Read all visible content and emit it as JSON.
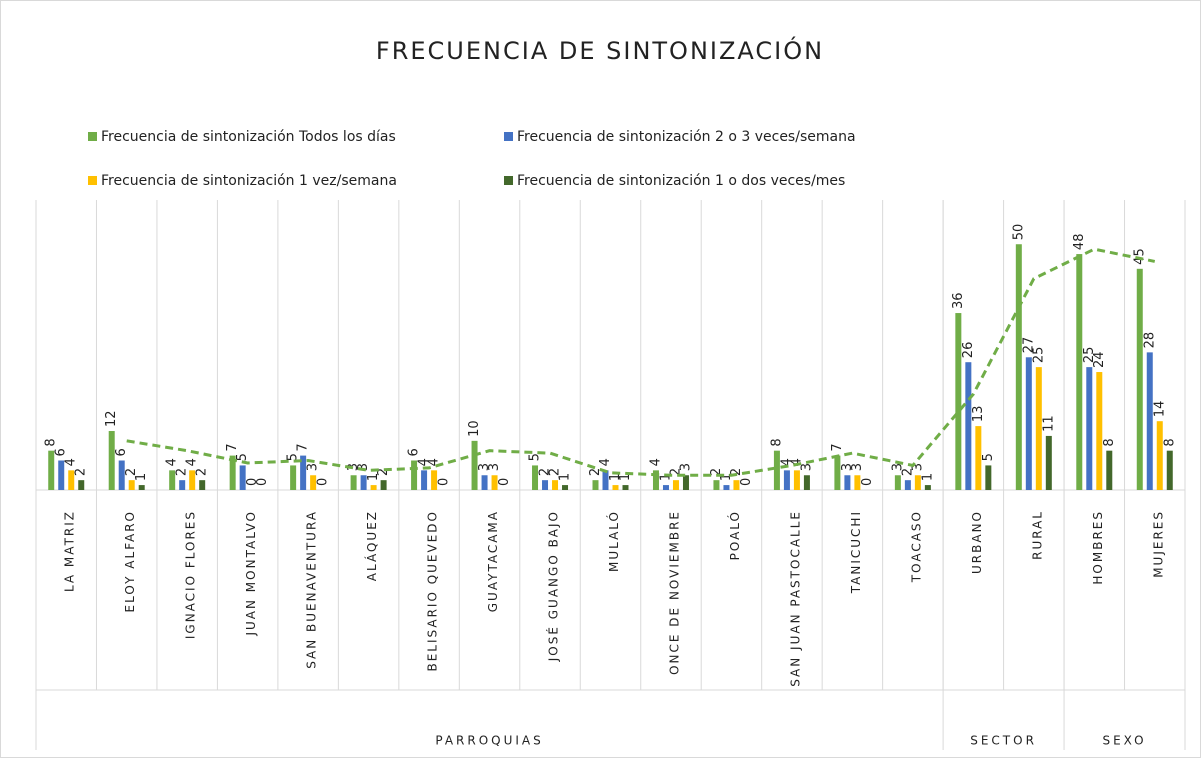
{
  "chart_data": {
    "type": "bar",
    "title": "FRECUENCIA DE SINTONIZACIÓN",
    "categories": [
      "LA MATRIZ",
      "ELOY ALFARO",
      "IGNACIO FLORES",
      "JUAN MONTALVO",
      "SAN BUENAVENTURA",
      "ALÁQUEZ",
      "BELISARIO QUEVEDO",
      "GUAYTACAMA",
      "JOSÉ GUANGO BAJO",
      "MULALÓ",
      "ONCE DE NOVIEMBRE",
      "POALÓ",
      "SAN JUAN PASTOCALLE",
      "TANICUCHI",
      "TOACASO",
      "URBANO",
      "RURAL",
      "HOMBRES",
      "MUJERES"
    ],
    "groups": [
      {
        "label": "PARROQUIAS",
        "count": 15
      },
      {
        "label": "SECTOR",
        "count": 2
      },
      {
        "label": "SEXO",
        "count": 2
      }
    ],
    "series": [
      {
        "name": "Frecuencia de sintonización Todos los días",
        "color": "#70ad47",
        "values": [
          8,
          12,
          4,
          7,
          5,
          3,
          6,
          10,
          5,
          2,
          4,
          2,
          8,
          7,
          3,
          36,
          50,
          48,
          45
        ]
      },
      {
        "name": "Frecuencia de sintonización 2 o 3 veces/semana",
        "color": "#4472c4",
        "values": [
          6,
          6,
          2,
          5,
          7,
          3,
          4,
          3,
          2,
          4,
          1,
          1,
          4,
          3,
          2,
          26,
          27,
          25,
          28
        ]
      },
      {
        "name": "Frecuencia de sintonización 1 vez/semana",
        "color": "#ffc000",
        "values": [
          4,
          2,
          4,
          0,
          3,
          1,
          4,
          3,
          2,
          1,
          2,
          2,
          4,
          3,
          3,
          13,
          25,
          24,
          14
        ]
      },
      {
        "name": "Frecuencia de sintonización 1 o dos veces/mes",
        "color": "#43682b",
        "values": [
          2,
          1,
          2,
          0,
          0,
          2,
          0,
          0,
          1,
          1,
          3,
          0,
          3,
          0,
          1,
          5,
          11,
          8,
          8
        ]
      }
    ],
    "trendline": {
      "series": 0,
      "type": "moving-average",
      "period": 2
    },
    "ylim": [
      0,
      59
    ]
  }
}
